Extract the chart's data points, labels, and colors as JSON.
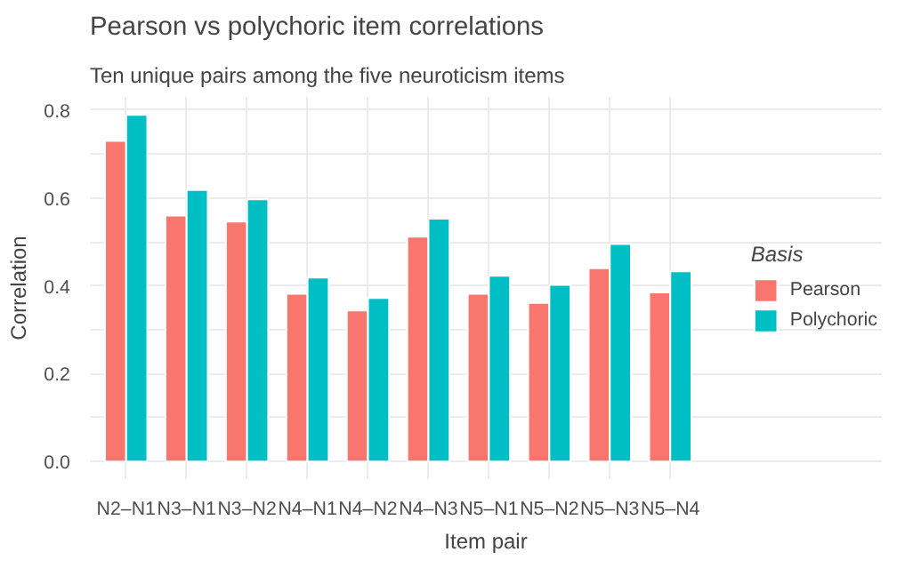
{
  "chart_data": {
    "type": "bar",
    "title": "Pearson vs polychoric item correlations",
    "subtitle": "Ten unique pairs among the five neuroticism items",
    "xlabel": "Item pair",
    "ylabel": "Correlation",
    "legend_title": "Basis",
    "categories": [
      "N2–N1",
      "N3–N1",
      "N3–N2",
      "N4–N1",
      "N4–N2",
      "N4–N3",
      "N5–N1",
      "N5–N2",
      "N5–N3",
      "N5–N4"
    ],
    "series": [
      {
        "name": "Pearson",
        "color": "#f8766d",
        "values": [
          0.73,
          0.56,
          0.546,
          0.382,
          0.344,
          0.512,
          0.382,
          0.361,
          0.44,
          0.385
        ]
      },
      {
        "name": "Polychoric",
        "color": "#00bfc4",
        "values": [
          0.789,
          0.618,
          0.597,
          0.419,
          0.372,
          0.553,
          0.423,
          0.402,
          0.495,
          0.433
        ]
      }
    ],
    "ylim": [
      -0.04,
      0.83
    ],
    "yticks": [
      {
        "value": 0.0,
        "label": "0.0"
      },
      {
        "value": 0.1,
        "label": null
      },
      {
        "value": 0.2,
        "label": "0.2"
      },
      {
        "value": 0.3,
        "label": null
      },
      {
        "value": 0.4,
        "label": "0.4"
      },
      {
        "value": 0.5,
        "label": null
      },
      {
        "value": 0.6,
        "label": "0.6"
      },
      {
        "value": 0.7,
        "label": null
      },
      {
        "value": 0.8,
        "label": "0.8"
      }
    ],
    "grid": true,
    "legend": "right"
  }
}
